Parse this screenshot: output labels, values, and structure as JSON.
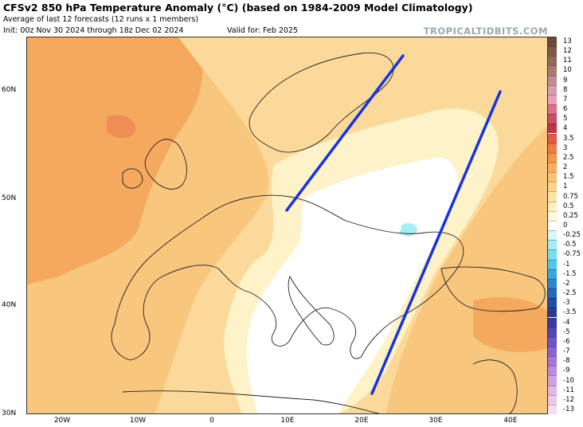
{
  "header": {
    "title": "CFSv2 850 hPa Temperature Anomaly (°C) (based on 1984-2009 Model Climatology)",
    "subtitle": "Average of last 12 forecasts (12 runs x 1 members)",
    "init": "Init: 00z Nov 30 2024 through 18z Dec 02 2024",
    "valid": "Valid for: Feb 2025",
    "brand": "TROPICALTIDBITS.COM"
  },
  "axes": {
    "lat_labels": [
      "60N",
      "50N",
      "40N",
      "30N"
    ],
    "lon_labels": [
      "20W",
      "10W",
      "0",
      "10E",
      "20E",
      "30E",
      "40E"
    ]
  },
  "colorbar": {
    "ticks": [
      "13",
      "12",
      "11",
      "10",
      "9",
      "8",
      "7",
      "6",
      "5",
      "4",
      "3.5",
      "3",
      "2.5",
      "2",
      "1.5",
      "1",
      "0.75",
      "0.5",
      "0.25",
      "0",
      "-0.25",
      "-0.5",
      "-0.75",
      "-1",
      "-1.5",
      "-2",
      "-2.5",
      "-3",
      "-3.5",
      "-4",
      "-5",
      "-6",
      "-7",
      "-8",
      "-9",
      "-10",
      "-11",
      "-12",
      "-13"
    ],
    "colors": [
      "#6b4a3a",
      "#7d5a48",
      "#8f6a58",
      "#a67c70",
      "#c08c96",
      "#d89cb0",
      "#e8a0bc",
      "#dc6f8e",
      "#c94f63",
      "#c0344a",
      "#e4584a",
      "#ef7a4a",
      "#f4954c",
      "#f7ad60",
      "#f9c276",
      "#fbd48c",
      "#fde3a4",
      "#fef0c0",
      "#fff8dc",
      "#ffffff",
      "#d8f6fb",
      "#a8ecf6",
      "#78deef",
      "#52c6e8",
      "#3aa6dc",
      "#2c86cc",
      "#2468b8",
      "#1f4ea2",
      "#2a3c8c",
      "#3a3aa0",
      "#5248b4",
      "#6a56c4",
      "#8864d0",
      "#a476d8",
      "#bc8ade",
      "#d2a0e2",
      "#e2b6e6",
      "#ecc8ec",
      "#f4dcf2"
    ]
  },
  "annotations": {
    "line_color": "#1733d8"
  }
}
